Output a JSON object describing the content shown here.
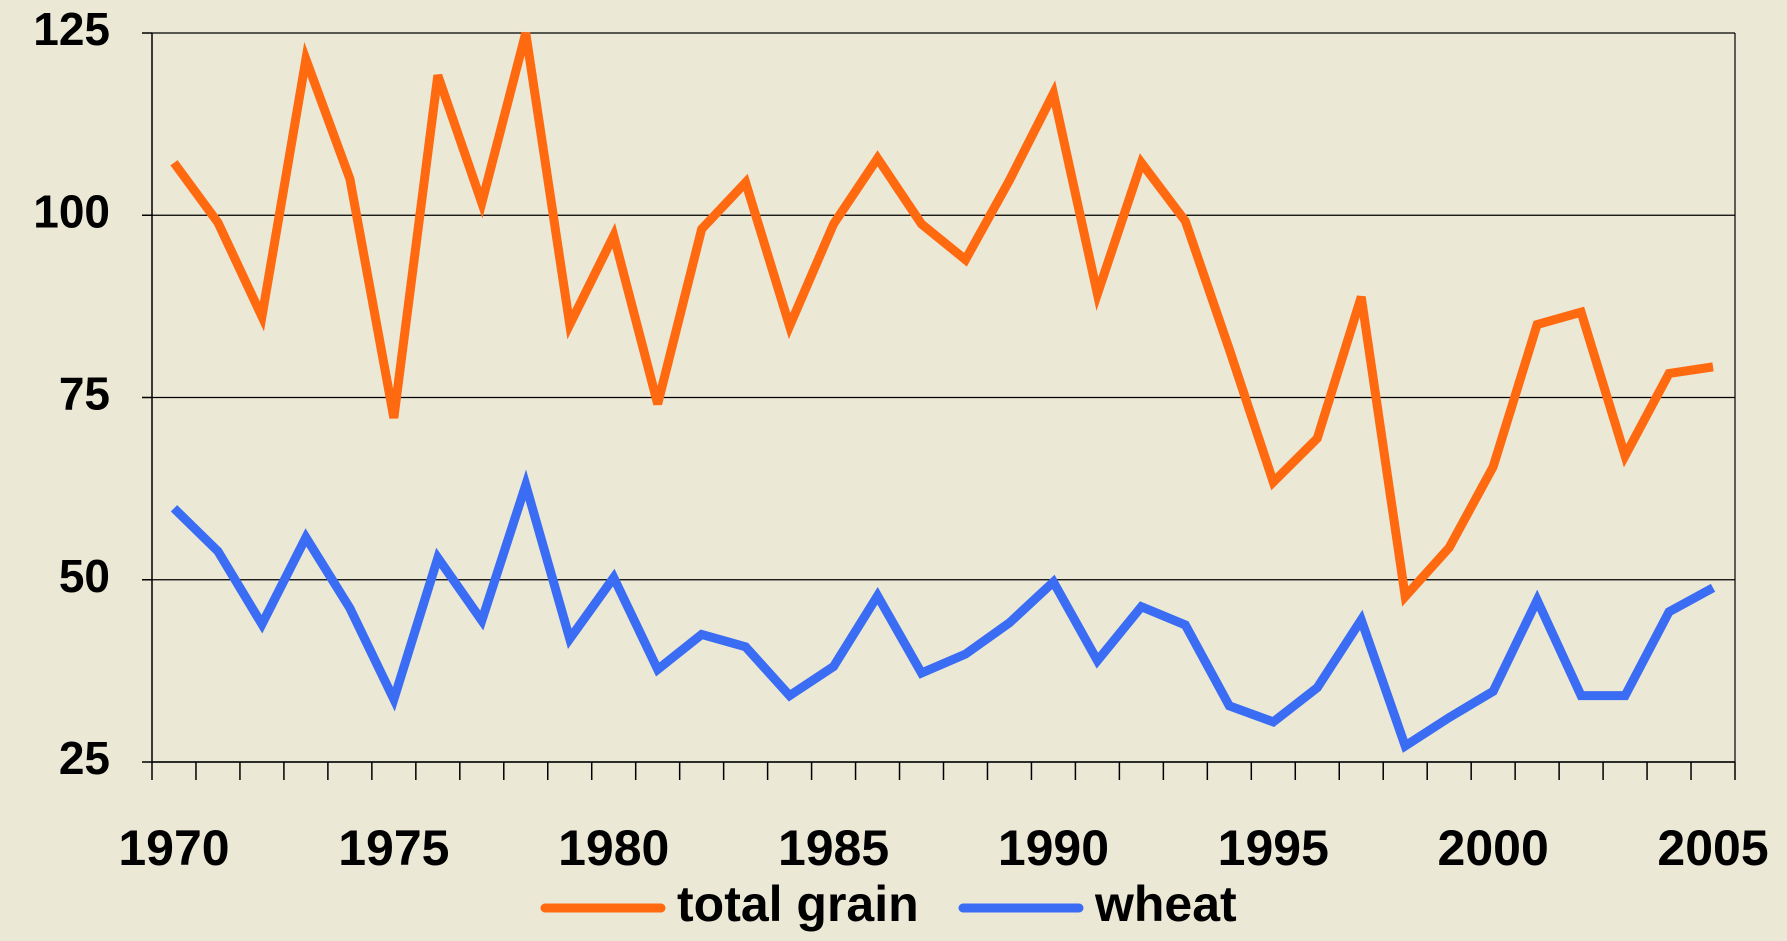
{
  "chart_data": {
    "type": "line",
    "categories": [
      "1970",
      null,
      null,
      null,
      null,
      "1975",
      null,
      null,
      null,
      null,
      "1980",
      null,
      null,
      null,
      null,
      "1985",
      null,
      null,
      null,
      null,
      "1990",
      null,
      null,
      null,
      null,
      "1995",
      null,
      null,
      null,
      null,
      "2000",
      null,
      null,
      null,
      null,
      "2005"
    ],
    "series": [
      {
        "name": "total grain",
        "color": "#ff6a10",
        "values": [
          107.2,
          99,
          86.1,
          121.4,
          105,
          72.2,
          119.2,
          101.7,
          125,
          85,
          97.2,
          74.1,
          98.1,
          104.5,
          84.8,
          98.8,
          107.8,
          98.8,
          93.9,
          104.8,
          116.7,
          89.2,
          107.2,
          99.2,
          81.6,
          63.4,
          69.4,
          88.8,
          47.7,
          54.4,
          65.5,
          85,
          86.7,
          67,
          78.3,
          79.2
        ]
      },
      {
        "name": "wheat",
        "color": "#3a6cf4",
        "values": [
          59.8,
          53.9,
          43.9,
          55.8,
          46.1,
          33.6,
          53,
          44.4,
          63,
          41.9,
          50.3,
          37.7,
          42.5,
          40.8,
          34.1,
          38.1,
          47.8,
          37.2,
          39.8,
          44.1,
          49.7,
          38.9,
          46.3,
          43.8,
          32.7,
          30.5,
          35.2,
          44.5,
          27.2,
          31.1,
          34.7,
          47.2,
          34.1,
          34.1,
          45.6,
          48.9
        ]
      }
    ],
    "ylim": [
      25,
      125
    ],
    "yticks": [
      25,
      50,
      75,
      100,
      125
    ],
    "grid": true,
    "legend": "bottom"
  }
}
